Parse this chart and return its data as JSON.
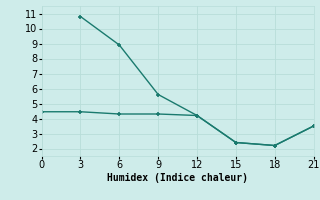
{
  "line1_x": [
    3,
    6,
    9,
    12,
    15,
    18,
    21
  ],
  "line1_y": [
    10.8,
    8.9,
    5.6,
    4.2,
    2.4,
    2.2,
    3.5
  ],
  "line2_x": [
    0,
    3,
    6,
    9,
    12,
    15,
    18,
    21
  ],
  "line2_y": [
    4.45,
    4.45,
    4.3,
    4.3,
    4.2,
    2.4,
    2.2,
    3.5
  ],
  "line_color": "#1a7a6e",
  "bg_color": "#ceecea",
  "grid_color": "#b8ddd9",
  "xlabel": "Humidex (Indice chaleur)",
  "xlim": [
    0,
    21
  ],
  "ylim": [
    1.5,
    11.5
  ],
  "xticks": [
    0,
    3,
    6,
    9,
    12,
    15,
    18,
    21
  ],
  "yticks": [
    2,
    3,
    4,
    5,
    6,
    7,
    8,
    9,
    10,
    11
  ],
  "markersize": 3,
  "linewidth": 1.0,
  "xlabel_fontsize": 7,
  "tick_fontsize": 7
}
